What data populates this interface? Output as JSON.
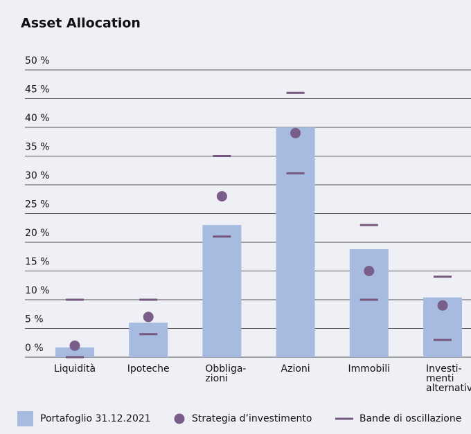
{
  "chart_data": {
    "type": "bar",
    "title": "Asset Allocation",
    "categories": [
      "Liquidità",
      "Ipoteche",
      "Obbliga-\nzioni",
      "Azioni",
      "Immobili",
      "Investi-\nmenti\nalternativi"
    ],
    "series": [
      {
        "name": "Portafoglio 31.12.2021",
        "color": "#a6bbdf",
        "values": [
          1.7,
          6,
          23,
          40,
          18.8,
          10.4
        ]
      },
      {
        "name": "Strategia d’investimento",
        "color": "#7a5e8a",
        "values": [
          2,
          7,
          28,
          39,
          15,
          9
        ]
      },
      {
        "name": "Bande di oscillazione",
        "color": "#76577e",
        "low": [
          0,
          4,
          21,
          32,
          10,
          3
        ],
        "high": [
          10,
          10,
          35,
          46,
          23,
          14
        ]
      }
    ],
    "ylim": [
      0,
      50
    ],
    "yticks": [
      {
        "value": 0,
        "label": "0 %"
      },
      {
        "value": 5,
        "label": "5 %"
      },
      {
        "value": 10,
        "label": "10 %"
      },
      {
        "value": 15,
        "label": "15 %"
      },
      {
        "value": 20,
        "label": "20 %"
      },
      {
        "value": 25,
        "label": "25 %"
      },
      {
        "value": 30,
        "label": "30 %"
      },
      {
        "value": 35,
        "label": "35 %"
      },
      {
        "value": 40,
        "label": "40 %"
      },
      {
        "value": 45,
        "label": "45 %"
      },
      {
        "value": 50,
        "label": "50 %"
      }
    ],
    "grid": true
  }
}
